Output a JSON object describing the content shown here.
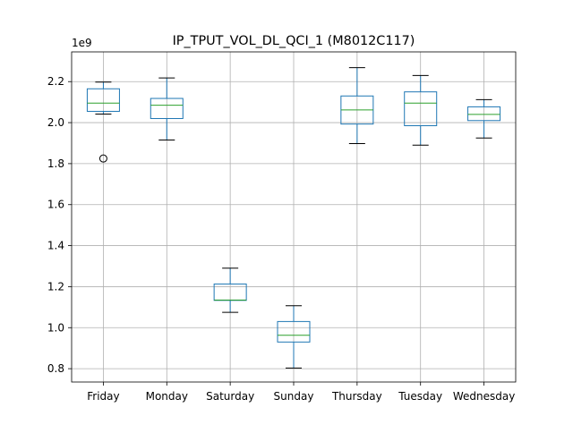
{
  "chart_data": {
    "type": "box",
    "title": "IP_TPUT_VOL_DL_QCI_1 (M8012C117)",
    "xlabel": "",
    "ylabel": "",
    "offset_label": "1e9",
    "ylim": [
      0.735,
      2.345
    ],
    "yticks": [
      0.8,
      1.0,
      1.2,
      1.4,
      1.6,
      1.8,
      2.0,
      2.2
    ],
    "ytick_labels": [
      "0.8",
      "1.0",
      "1.2",
      "1.4",
      "1.6",
      "1.8",
      "2.0",
      "2.2"
    ],
    "grid": true,
    "categories": [
      "Friday",
      "Monday",
      "Saturday",
      "Sunday",
      "Thursday",
      "Tuesday",
      "Wednesday"
    ],
    "boxes": [
      {
        "category": "Friday",
        "whisker_low": 2.042,
        "q1": 2.055,
        "median": 2.095,
        "q3": 2.165,
        "whisker_high": 2.198,
        "outliers": [
          1.825
        ]
      },
      {
        "category": "Monday",
        "whisker_low": 1.915,
        "q1": 2.02,
        "median": 2.085,
        "q3": 2.118,
        "whisker_high": 2.218,
        "outliers": []
      },
      {
        "category": "Saturday",
        "whisker_low": 1.075,
        "q1": 1.133,
        "median": 1.135,
        "q3": 1.213,
        "whisker_high": 1.29,
        "outliers": []
      },
      {
        "category": "Sunday",
        "whisker_low": 0.803,
        "q1": 0.93,
        "median": 0.963,
        "q3": 1.03,
        "whisker_high": 1.107,
        "outliers": []
      },
      {
        "category": "Thursday",
        "whisker_low": 1.898,
        "q1": 1.993,
        "median": 2.062,
        "q3": 2.13,
        "whisker_high": 2.268,
        "outliers": []
      },
      {
        "category": "Tuesday",
        "whisker_low": 1.89,
        "q1": 1.985,
        "median": 2.095,
        "q3": 2.15,
        "whisker_high": 2.23,
        "outliers": []
      },
      {
        "category": "Wednesday",
        "whisker_low": 1.925,
        "q1": 2.01,
        "median": 2.04,
        "q3": 2.077,
        "whisker_high": 2.112,
        "outliers": []
      }
    ],
    "colors": {
      "box": "#1f77b4",
      "median": "#2ca02c",
      "whisker_cap": "#000000",
      "grid": "#b0b0b0",
      "outlier": "#000000"
    }
  }
}
